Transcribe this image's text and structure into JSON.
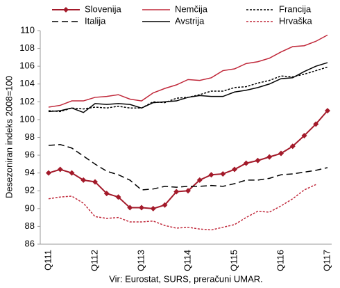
{
  "chart_data": {
    "type": "line",
    "y_label": "Desezoniran indeks 2008=100",
    "source": "Vir: Eurostat, SURS, preračuni UMAR.",
    "categories": [
      "Q111",
      null,
      null,
      null,
      "Q112",
      null,
      null,
      null,
      "Q113",
      null,
      null,
      null,
      "Q114",
      null,
      null,
      null,
      "Q115",
      null,
      null,
      null,
      "Q116",
      null,
      null,
      null,
      "Q117"
    ],
    "ylim": [
      86,
      110
    ],
    "yticks": [
      86,
      88,
      90,
      92,
      94,
      96,
      98,
      100,
      102,
      104,
      106,
      108,
      110
    ],
    "grid": false,
    "series": [
      {
        "name": "Slovenija",
        "color": "#a31a2a",
        "dash": "solid",
        "marker": "diamond",
        "values": [
          94.0,
          94.4,
          94.0,
          93.2,
          93.0,
          91.7,
          91.3,
          90.1,
          90.1,
          90.0,
          90.4,
          91.9,
          92.0,
          93.2,
          93.8,
          93.9,
          94.4,
          95.1,
          95.4,
          95.8,
          96.2,
          97.0,
          98.2,
          99.5,
          101.0
        ]
      },
      {
        "name": "Nemčija",
        "color": "#c0283a",
        "dash": "solid",
        "marker": "none",
        "values": [
          101.4,
          101.6,
          102.1,
          102.1,
          102.5,
          102.6,
          102.8,
          102.3,
          102.1,
          103.0,
          103.5,
          103.9,
          104.5,
          104.4,
          104.7,
          105.5,
          105.7,
          106.3,
          106.5,
          106.9,
          107.6,
          108.2,
          108.3,
          108.8,
          109.5
        ]
      },
      {
        "name": "Francija",
        "color": "#000000",
        "dash": "short",
        "marker": "none",
        "values": [
          101.0,
          100.9,
          101.3,
          101.2,
          101.4,
          101.3,
          101.5,
          101.3,
          101.3,
          102.0,
          101.9,
          102.4,
          102.5,
          102.8,
          103.2,
          103.2,
          103.6,
          103.7,
          104.1,
          104.4,
          104.9,
          104.8,
          105.1,
          105.5,
          105.9
        ]
      },
      {
        "name": "Italija",
        "color": "#000000",
        "dash": "long",
        "marker": "none",
        "values": [
          97.1,
          97.2,
          96.8,
          95.9,
          95.0,
          94.2,
          93.8,
          93.2,
          92.1,
          92.2,
          92.5,
          92.4,
          92.5,
          92.5,
          92.6,
          92.5,
          92.8,
          93.2,
          93.2,
          93.4,
          93.8,
          93.9,
          94.1,
          94.3,
          94.6
        ]
      },
      {
        "name": "Avstrija",
        "color": "#000000",
        "dash": "solid",
        "marker": "none",
        "values": [
          100.9,
          101.0,
          101.3,
          100.8,
          101.8,
          101.7,
          101.8,
          101.7,
          101.3,
          101.9,
          102.0,
          102.1,
          102.5,
          102.7,
          102.6,
          102.6,
          103.1,
          103.3,
          103.6,
          104.0,
          104.6,
          104.7,
          105.4,
          106.0,
          106.4
        ]
      },
      {
        "name": "Hrvaška",
        "color": "#c0283a",
        "dash": "short",
        "marker": "none",
        "values": [
          91.1,
          91.3,
          91.4,
          90.6,
          89.1,
          88.9,
          89.0,
          88.5,
          88.5,
          88.6,
          88.1,
          87.8,
          87.9,
          87.7,
          87.6,
          87.9,
          88.2,
          89.0,
          89.7,
          89.6,
          90.3,
          91.1,
          92.1,
          92.7,
          null
        ]
      }
    ]
  }
}
